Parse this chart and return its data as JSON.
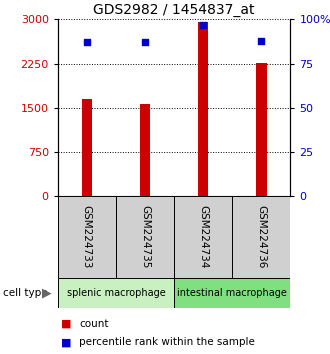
{
  "title": "GDS2982 / 1454837_at",
  "samples": [
    "GSM224733",
    "GSM224735",
    "GSM224734",
    "GSM224736"
  ],
  "counts": [
    1650,
    1560,
    2950,
    2260
  ],
  "percentile_ranks": [
    87,
    87,
    97,
    88
  ],
  "ylim_left": [
    0,
    3000
  ],
  "ylim_right": [
    0,
    100
  ],
  "yticks_left": [
    0,
    750,
    1500,
    2250,
    3000
  ],
  "yticks_right": [
    0,
    25,
    50,
    75,
    100
  ],
  "bar_color": "#cc0000",
  "marker_color": "#0000cc",
  "bar_width": 0.18,
  "group_colors": [
    "#c8f0c0",
    "#80e080"
  ],
  "sample_bg_color": "#d0d0d0",
  "legend_count_color": "#cc0000",
  "legend_pct_color": "#0000cc",
  "cell_type_label": "cell type",
  "legend_count_label": "count",
  "legend_pct_label": "percentile rank within the sample",
  "group_labels": [
    "splenic macrophage",
    "intestinal macrophage"
  ],
  "title_fontsize": 10,
  "tick_fontsize": 8,
  "label_fontsize": 8
}
